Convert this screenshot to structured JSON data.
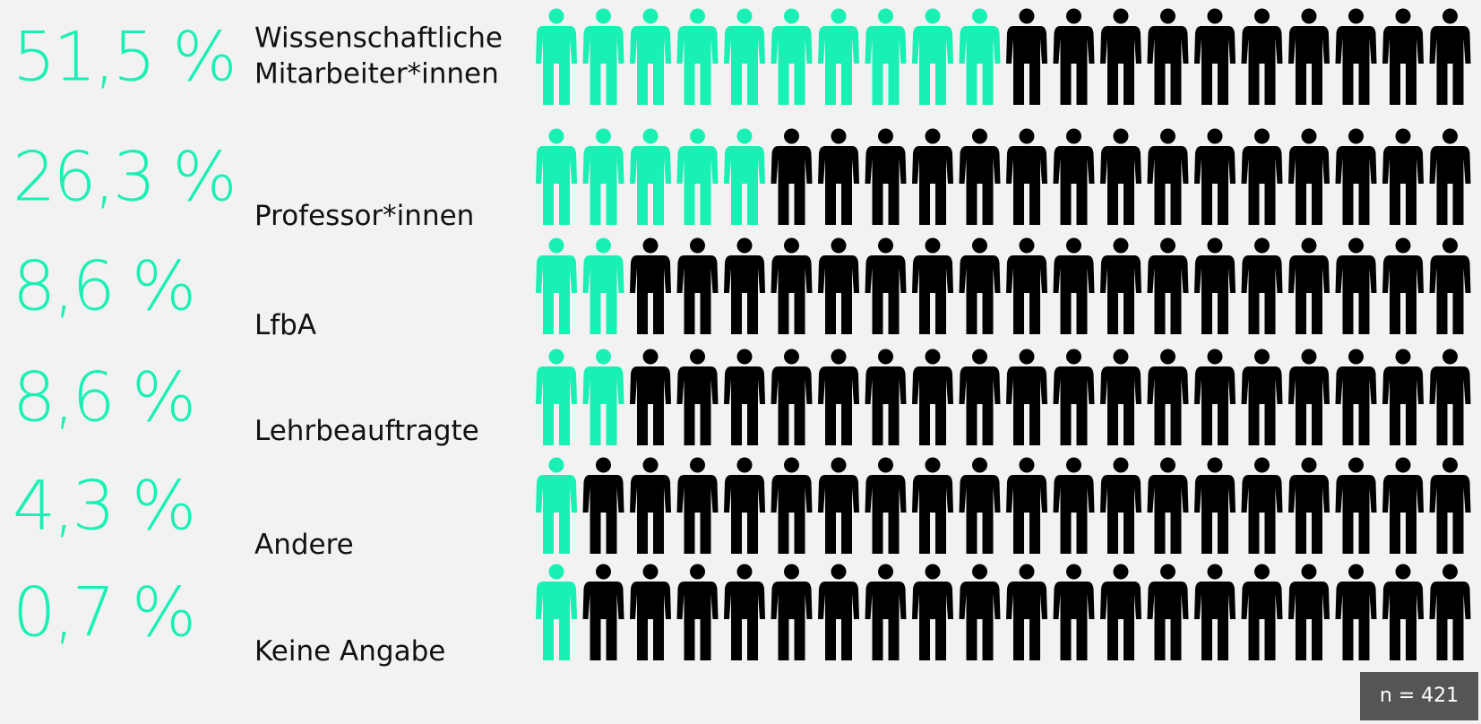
{
  "chart_data": {
    "type": "pictogram",
    "categories": [
      "Wissenschaftliche\nMitarbeiter*innen",
      "Professor*innen",
      "LfbA",
      "Lehrbeauftragte",
      "Andere",
      "Keine Angabe"
    ],
    "values": [
      51.5,
      26.3,
      8.6,
      8.6,
      4.3,
      0.7
    ],
    "value_labels": [
      "51,5 %",
      "26,3 %",
      "8,6 %",
      "8,6 %",
      "4,3 %",
      "0,7 %"
    ],
    "filled_icons": [
      10,
      5,
      2,
      2,
      1,
      1
    ],
    "icons_per_row": 20,
    "color": "#19f0b4",
    "rest_color": "#000000",
    "note": "n = 421"
  }
}
